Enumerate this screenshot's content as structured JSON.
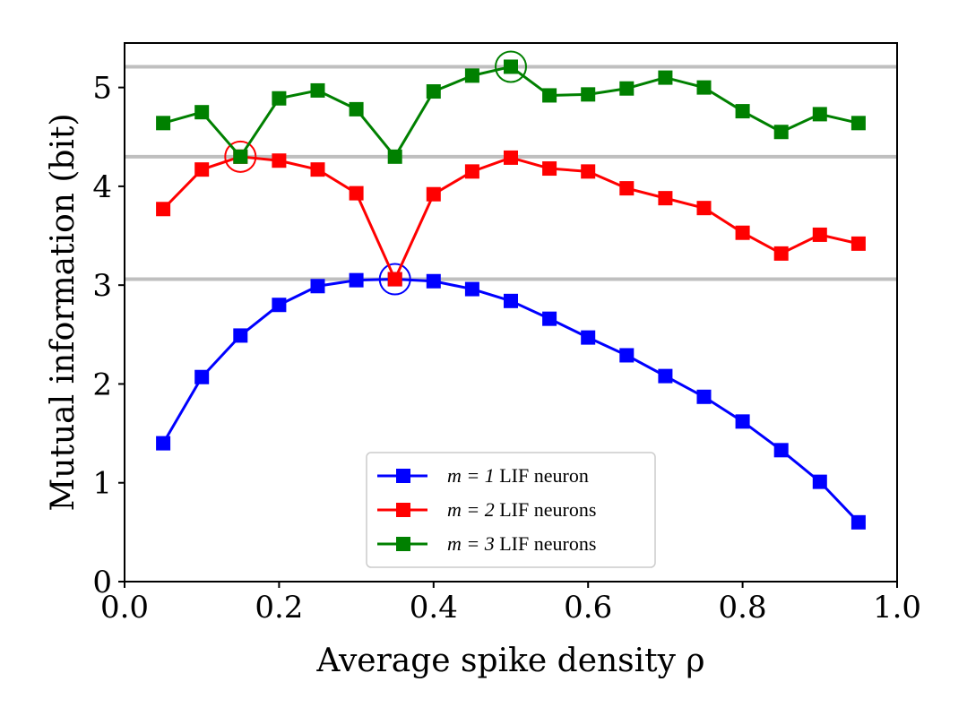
{
  "chart_data": {
    "type": "line",
    "title": "",
    "xlabel": "Average spike density ρ",
    "ylabel": "Mutual information (bit)",
    "xlim": [
      0.0,
      1.0
    ],
    "ylim": [
      0,
      5.45
    ],
    "xticks": [
      0.0,
      0.2,
      0.4,
      0.6,
      0.8,
      1.0
    ],
    "xtick_labels": [
      "0.0",
      "0.2",
      "0.4",
      "0.6",
      "0.8",
      "1.0"
    ],
    "yticks": [
      0,
      1,
      2,
      3,
      4,
      5
    ],
    "ytick_labels": [
      "0",
      "1",
      "2",
      "3",
      "4",
      "5"
    ],
    "x": [
      0.05,
      0.1,
      0.15,
      0.2,
      0.25,
      0.3,
      0.35,
      0.4,
      0.45,
      0.5,
      0.55,
      0.6,
      0.65,
      0.7,
      0.75,
      0.8,
      0.85,
      0.9,
      0.95
    ],
    "series": [
      {
        "name": "m = 1 LIF neuron",
        "legend_var": "m = 1",
        "legend_rest": "LIF neuron",
        "color": "#0000ff",
        "values": [
          1.4,
          2.07,
          2.49,
          2.8,
          2.99,
          3.05,
          3.06,
          3.04,
          2.96,
          2.84,
          2.66,
          2.47,
          2.29,
          2.08,
          1.87,
          1.62,
          1.33,
          1.01,
          0.6
        ],
        "highlight": {
          "x": 0.35,
          "y": 3.06
        }
      },
      {
        "name": "m = 2 LIF neurons",
        "legend_var": "m = 2",
        "legend_rest": "LIF neurons",
        "color": "#ff0000",
        "values": [
          3.77,
          4.17,
          4.3,
          4.26,
          4.17,
          3.93,
          3.06,
          3.92,
          4.15,
          4.29,
          4.18,
          4.15,
          3.98,
          3.88,
          3.78,
          3.53,
          3.32,
          3.51,
          3.42
        ],
        "highlight": {
          "x": 0.15,
          "y": 4.3
        }
      },
      {
        "name": "m = 3 LIF neurons",
        "legend_var": "m = 3",
        "legend_rest": "LIF neurons",
        "color": "#008000",
        "values": [
          4.64,
          4.75,
          4.3,
          4.89,
          4.97,
          4.78,
          4.3,
          4.96,
          5.12,
          5.21,
          4.92,
          4.93,
          4.99,
          5.1,
          5.0,
          4.76,
          4.55,
          4.73,
          4.64
        ],
        "highlight": {
          "x": 0.5,
          "y": 5.21
        }
      }
    ],
    "reference_lines": [
      3.06,
      4.3,
      5.21
    ],
    "reference_line_color": "#bfbfbf",
    "legend_position": "lower-center",
    "grid": false
  }
}
